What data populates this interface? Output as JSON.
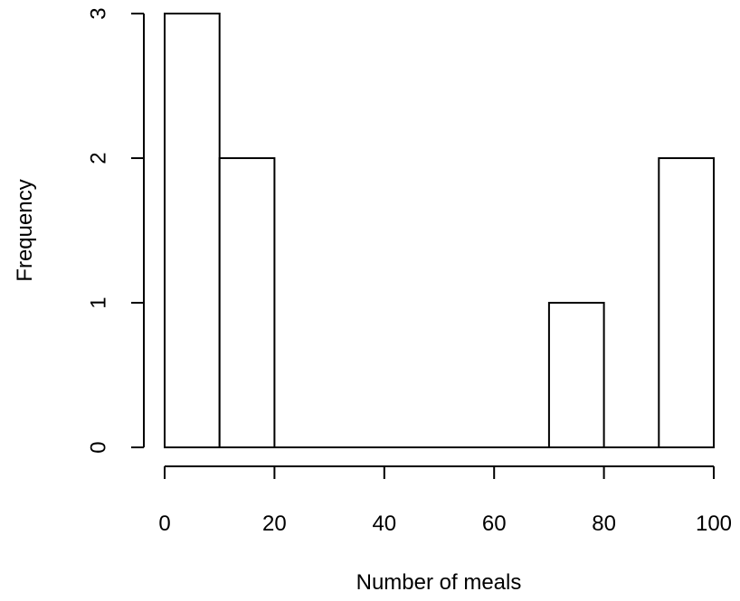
{
  "chart_data": {
    "type": "bar",
    "title": "",
    "xlabel": "Number of meals",
    "ylabel": "Frequency",
    "bins": [
      {
        "x0": 0,
        "x1": 10,
        "count": 3
      },
      {
        "x0": 10,
        "x1": 20,
        "count": 2
      },
      {
        "x0": 20,
        "x1": 30,
        "count": 0
      },
      {
        "x0": 30,
        "x1": 40,
        "count": 0
      },
      {
        "x0": 40,
        "x1": 50,
        "count": 0
      },
      {
        "x0": 50,
        "x1": 60,
        "count": 0
      },
      {
        "x0": 60,
        "x1": 70,
        "count": 0
      },
      {
        "x0": 70,
        "x1": 80,
        "count": 1
      },
      {
        "x0": 80,
        "x1": 90,
        "count": 0
      },
      {
        "x0": 90,
        "x1": 100,
        "count": 2
      }
    ],
    "xlim": [
      0,
      100
    ],
    "ylim": [
      0,
      3
    ],
    "x_ticks": [
      0,
      20,
      40,
      60,
      80,
      100
    ],
    "y_ticks": [
      0,
      1,
      2,
      3
    ],
    "grid": false
  }
}
